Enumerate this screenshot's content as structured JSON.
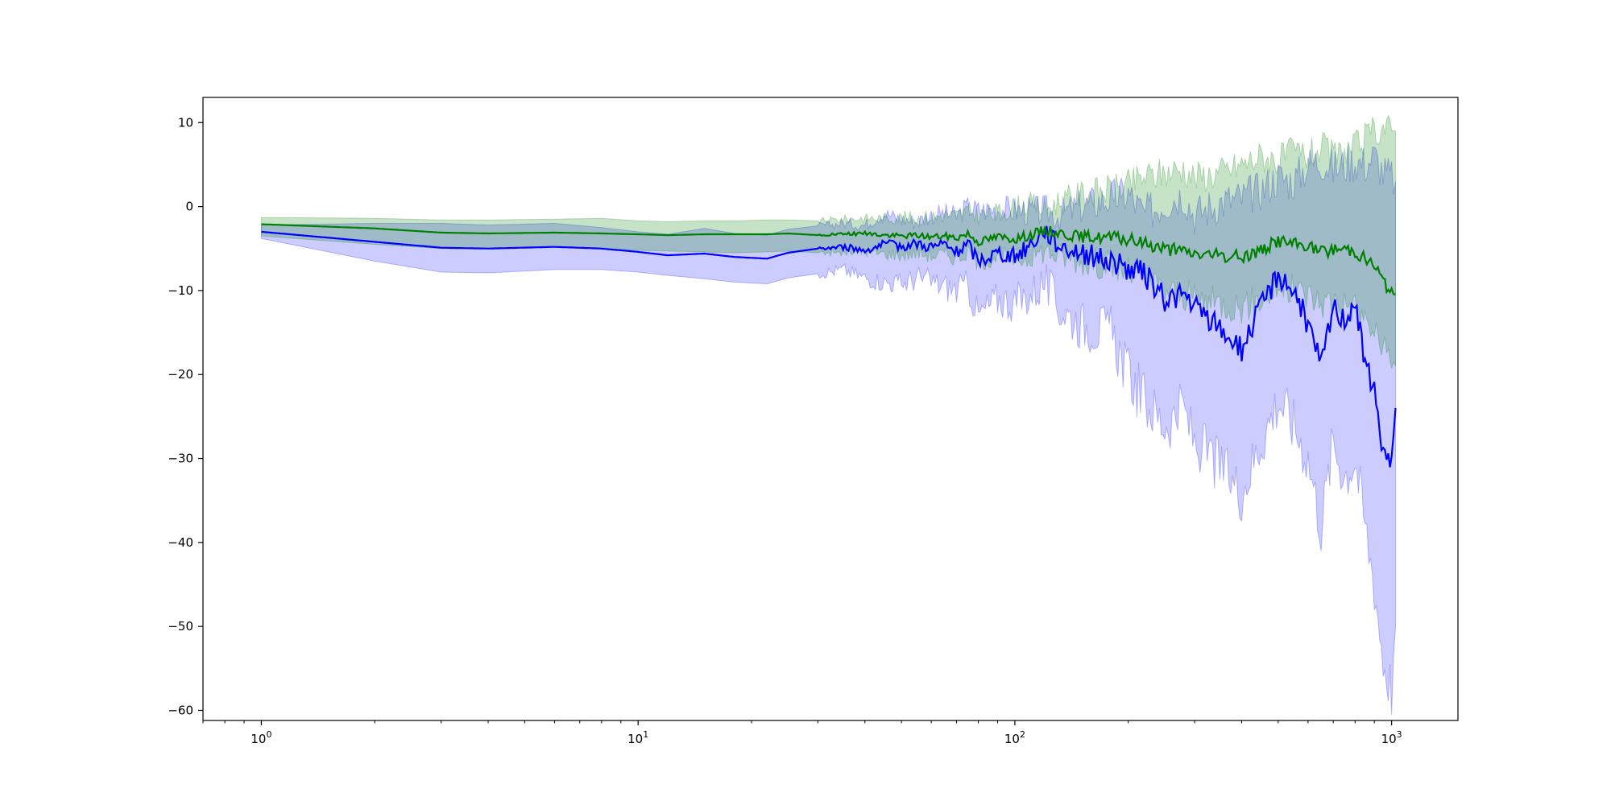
{
  "chart_data": {
    "type": "line",
    "title": "",
    "xlabel": "",
    "ylabel": "",
    "xscale": "log",
    "xlim": [
      0.7,
      1500
    ],
    "ylim": [
      -61.2,
      13
    ],
    "grid": false,
    "yticks": [
      10,
      0,
      -10,
      -20,
      -30,
      -40,
      -50,
      -60
    ],
    "ytick_labels": [
      "10",
      "0",
      "−10",
      "−20",
      "−30",
      "−40",
      "−50",
      "−60"
    ],
    "xticks": [
      {
        "value": 1,
        "base": "10",
        "exp": "0"
      },
      {
        "value": 10,
        "base": "10",
        "exp": "1"
      },
      {
        "value": 100,
        "base": "10",
        "exp": "2"
      },
      {
        "value": 1000,
        "base": "10",
        "exp": "3"
      }
    ],
    "series": [
      {
        "color": "#0000ff",
        "band_color": "#0000ff",
        "band_opacity": 0.2,
        "x": [
          1,
          2,
          3,
          4,
          6,
          8,
          10,
          12,
          15,
          18,
          22,
          25,
          30,
          35,
          40,
          45,
          50,
          55,
          60,
          65,
          70,
          75,
          80,
          90,
          100,
          110,
          120,
          130,
          150,
          180,
          200,
          220,
          250,
          280,
          300,
          350,
          400,
          450,
          500,
          550,
          600,
          650,
          700,
          750,
          800,
          850,
          900,
          950,
          1000,
          1024
        ],
        "mean": [
          -3,
          -4.2,
          -4.9,
          -5.0,
          -4.8,
          -5.0,
          -5.4,
          -5.8,
          -5.6,
          -6.0,
          -6.2,
          -5.5,
          -5.0,
          -4.8,
          -5.2,
          -4.5,
          -4.7,
          -4.4,
          -4.8,
          -4.5,
          -5.5,
          -4.5,
          -6.5,
          -5.5,
          -6.0,
          -4.5,
          -2.8,
          -4.5,
          -5.5,
          -6.5,
          -7.5,
          -8.0,
          -11.0,
          -10.5,
          -12.0,
          -14.5,
          -17.0,
          -12.0,
          -8.0,
          -10.0,
          -14.0,
          -19.0,
          -12.0,
          -13.5,
          -11.0,
          -19.0,
          -22.0,
          -29.0,
          -31.0,
          -24.0
        ],
        "lower": [
          -3.8,
          -6.5,
          -7.8,
          -7.9,
          -7.5,
          -7.5,
          -7.8,
          -8.2,
          -8.6,
          -9.0,
          -9.2,
          -8.5,
          -8.0,
          -7.5,
          -8.5,
          -9.0,
          -9.2,
          -8.5,
          -9.0,
          -9.5,
          -10.0,
          -9.5,
          -13.0,
          -11.0,
          -11.5,
          -10.5,
          -9.0,
          -12.0,
          -14.0,
          -15.0,
          -20.0,
          -23.0,
          -26.0,
          -24.0,
          -28.0,
          -31.0,
          -34.0,
          -28.0,
          -23.0,
          -26.0,
          -30.0,
          -38.0,
          -28.0,
          -32.0,
          -30.0,
          -38.0,
          -45.0,
          -54.0,
          -57.5,
          -50.0
        ],
        "upper": [
          -2.2,
          -2.0,
          -2.0,
          -2.2,
          -2.0,
          -2.5,
          -3.0,
          -3.3,
          -2.6,
          -3.2,
          -3.4,
          -2.7,
          -2.3,
          -2.0,
          -2.2,
          -0.8,
          -1.5,
          -1.8,
          -1.0,
          -0.8,
          -1.2,
          0.0,
          -0.5,
          -0.2,
          -0.4,
          -0.6,
          -0.5,
          -1.0,
          0.0,
          1.0,
          1.5,
          -1.0,
          0.5,
          1.5,
          -1.0,
          0.5,
          1.0,
          2.0,
          3.5,
          3.0,
          5.0,
          5.5,
          4.5,
          5.0,
          5.5,
          5.0,
          6.0,
          4.0,
          3.5,
          3.0
        ]
      },
      {
        "color": "#008000",
        "band_color": "#008000",
        "band_opacity": 0.22,
        "x": [
          1,
          2,
          3,
          4,
          6,
          8,
          10,
          12,
          15,
          18,
          22,
          25,
          30,
          35,
          40,
          45,
          50,
          55,
          60,
          65,
          70,
          75,
          80,
          90,
          100,
          110,
          120,
          130,
          150,
          180,
          200,
          220,
          250,
          280,
          300,
          350,
          400,
          450,
          500,
          550,
          600,
          650,
          700,
          750,
          800,
          850,
          900,
          950,
          1000,
          1024
        ],
        "mean": [
          -2.1,
          -2.6,
          -3.1,
          -3.2,
          -3.1,
          -3.2,
          -3.3,
          -3.4,
          -3.3,
          -3.3,
          -3.3,
          -3.2,
          -3.4,
          -3.3,
          -3.2,
          -3.4,
          -3.5,
          -3.4,
          -3.6,
          -3.5,
          -3.7,
          -3.2,
          -4.2,
          -3.6,
          -3.8,
          -3.4,
          -2.8,
          -3.1,
          -3.6,
          -3.7,
          -4.0,
          -4.3,
          -5.0,
          -5.4,
          -5.6,
          -5.9,
          -6.0,
          -5.2,
          -4.0,
          -4.5,
          -4.6,
          -5.5,
          -5.1,
          -5.0,
          -5.3,
          -6.2,
          -7.0,
          -8.8,
          -10.5,
          -10.5
        ],
        "lower": [
          -3.5,
          -4.5,
          -5.0,
          -5.0,
          -4.8,
          -5.0,
          -5.2,
          -5.3,
          -5.4,
          -5.5,
          -5.4,
          -5.3,
          -5.5,
          -5.5,
          -5.3,
          -5.6,
          -5.8,
          -5.5,
          -5.8,
          -5.7,
          -6.0,
          -5.5,
          -6.5,
          -5.8,
          -6.2,
          -6.0,
          -5.2,
          -5.8,
          -6.5,
          -7.0,
          -8.0,
          -8.5,
          -10.0,
          -10.5,
          -11.0,
          -11.5,
          -12.0,
          -11.0,
          -9.5,
          -10.0,
          -10.5,
          -11.5,
          -11.0,
          -11.5,
          -12.0,
          -13.5,
          -15.0,
          -17.0,
          -19.0,
          -19.0
        ],
        "upper": [
          -1.3,
          -1.4,
          -1.6,
          -1.6,
          -1.5,
          -1.4,
          -1.7,
          -1.8,
          -1.7,
          -1.7,
          -1.6,
          -1.6,
          -1.7,
          -1.5,
          -1.4,
          -1.4,
          -1.3,
          -1.4,
          -1.2,
          -1.0,
          -1.1,
          -0.5,
          -1.0,
          -0.8,
          0.0,
          0.3,
          -0.3,
          0.5,
          1.5,
          2.0,
          2.5,
          3.5,
          4.0,
          4.5,
          3.5,
          4.0,
          5.0,
          6.0,
          5.5,
          6.5,
          6.0,
          7.0,
          6.0,
          6.5,
          7.0,
          8.0,
          9.0,
          9.5,
          9.0,
          9.0
        ]
      }
    ]
  }
}
